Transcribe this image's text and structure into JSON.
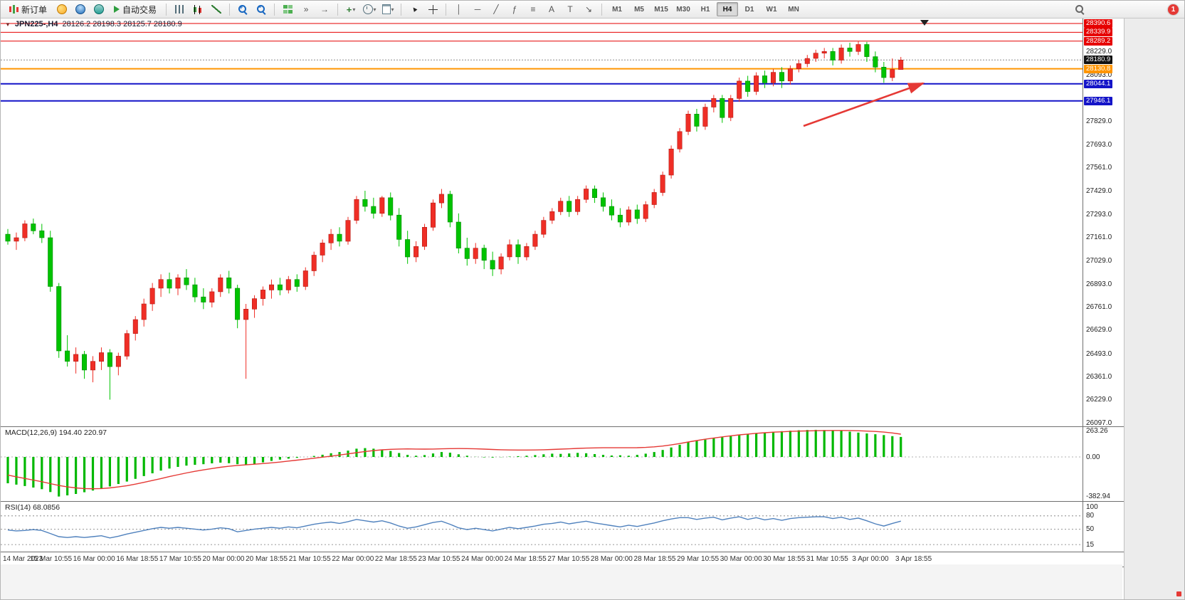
{
  "toolbar": {
    "new_order": "新订单",
    "auto_trading": "自动交易",
    "timeframes": [
      "M1",
      "M5",
      "M15",
      "M30",
      "H1",
      "H4",
      "D1",
      "W1",
      "MN"
    ],
    "active_timeframe": "H4",
    "notification_count": "1",
    "drawing_tools": [
      {
        "name": "vertical-line-tool",
        "glyph": "│"
      },
      {
        "name": "horizontal-line-tool",
        "glyph": "─"
      },
      {
        "name": "trendline-tool",
        "glyph": "╱"
      },
      {
        "name": "fibonacci-tool",
        "glyph": "ƒ"
      },
      {
        "name": "cycle-lines-tool",
        "glyph": "≡"
      },
      {
        "name": "text-tool",
        "glyph": "A"
      },
      {
        "name": "label-tool",
        "glyph": "T"
      },
      {
        "name": "arrows-tool",
        "glyph": "↘"
      }
    ],
    "icons": {
      "dropdown": "▾",
      "play": "▶",
      "tile_windows": "⊞",
      "auto_scroll": "»",
      "chart_shift": "→",
      "cursor": "▲",
      "indicators_plus": "+"
    }
  },
  "chart_data": {
    "type": "candlestick",
    "title_text": "JPN225-,H4",
    "ohlc_text": "28126.2 28198.3 28125.7 28180.9",
    "ohlc": {
      "open": 28126.2,
      "high": 28198.3,
      "low": 28125.7,
      "close": 28180.9
    },
    "up_color": "#ef2e26",
    "down_color": "#00c300",
    "price_axis": [
      28229.0,
      28093.0,
      27829.0,
      27693.0,
      27561.0,
      27429.0,
      27293.0,
      27161.0,
      27029.0,
      26893.0,
      26761.0,
      26629.0,
      26493.0,
      26361.0,
      26229.0,
      26097.0
    ],
    "levels": [
      {
        "value": 28390.6,
        "label": "28390.6",
        "color": "#e60000",
        "width": 1,
        "type": "resistance"
      },
      {
        "value": 28339.9,
        "label": "28339.9",
        "color": "#e60000",
        "width": 1,
        "type": "resistance"
      },
      {
        "value": 28289.2,
        "label": "28289.2",
        "color": "#e60000",
        "width": 1,
        "type": "resistance"
      },
      {
        "value": 28130.8,
        "label": "28130.8",
        "color": "#ff9500",
        "width": 2,
        "type": "support"
      },
      {
        "value": 28044.1,
        "label": "28044.1",
        "color": "#1414c8",
        "width": 2,
        "type": "support"
      },
      {
        "value": 27946.1,
        "label": "27946.1",
        "color": "#1414c8",
        "width": 2,
        "type": "support"
      }
    ],
    "bid": {
      "value": 28180.9,
      "label": "28180.9",
      "tag_color": "#111111"
    },
    "candles": [
      [
        27180,
        27210,
        27120,
        27140
      ],
      [
        27140,
        27190,
        27090,
        27160
      ],
      [
        27160,
        27260,
        27140,
        27240
      ],
      [
        27240,
        27270,
        27180,
        27200
      ],
      [
        27200,
        27240,
        27130,
        27160
      ],
      [
        27160,
        27200,
        26850,
        26880
      ],
      [
        26880,
        26900,
        26470,
        26510
      ],
      [
        26510,
        26600,
        26420,
        26450
      ],
      [
        26450,
        26530,
        26380,
        26490
      ],
      [
        26490,
        26510,
        26350,
        26400
      ],
      [
        26400,
        26480,
        26330,
        26450
      ],
      [
        26450,
        26530,
        26400,
        26500
      ],
      [
        26500,
        26520,
        26230,
        26420
      ],
      [
        26420,
        26500,
        26370,
        26480
      ],
      [
        26480,
        26630,
        26460,
        26610
      ],
      [
        26610,
        26710,
        26570,
        26690
      ],
      [
        26690,
        26810,
        26650,
        26780
      ],
      [
        26780,
        26900,
        26740,
        26870
      ],
      [
        26870,
        26950,
        26820,
        26920
      ],
      [
        26920,
        26960,
        26840,
        26870
      ],
      [
        26870,
        26950,
        26830,
        26930
      ],
      [
        26930,
        26980,
        26860,
        26890
      ],
      [
        26890,
        26930,
        26790,
        26820
      ],
      [
        26820,
        26870,
        26750,
        26790
      ],
      [
        26790,
        26870,
        26760,
        26850
      ],
      [
        26850,
        26950,
        26820,
        26930
      ],
      [
        26930,
        26970,
        26840,
        26870
      ],
      [
        26870,
        26890,
        26640,
        26690
      ],
      [
        26690,
        26780,
        26350,
        26750
      ],
      [
        26750,
        26830,
        26700,
        26810
      ],
      [
        26810,
        26880,
        26770,
        26860
      ],
      [
        26860,
        26920,
        26810,
        26890
      ],
      [
        26890,
        26930,
        26830,
        26860
      ],
      [
        26860,
        26940,
        26840,
        26920
      ],
      [
        26920,
        26950,
        26850,
        26880
      ],
      [
        26880,
        26990,
        26860,
        26970
      ],
      [
        26970,
        27080,
        26940,
        27060
      ],
      [
        27060,
        27150,
        27020,
        27130
      ],
      [
        27130,
        27210,
        27090,
        27180
      ],
      [
        27180,
        27220,
        27110,
        27140
      ],
      [
        27140,
        27280,
        27120,
        27260
      ],
      [
        27260,
        27400,
        27240,
        27380
      ],
      [
        27380,
        27430,
        27310,
        27340
      ],
      [
        27340,
        27390,
        27270,
        27300
      ],
      [
        27300,
        27400,
        27280,
        27390
      ],
      [
        27390,
        27420,
        27260,
        27290
      ],
      [
        27290,
        27330,
        27110,
        27150
      ],
      [
        27150,
        27200,
        27010,
        27050
      ],
      [
        27050,
        27140,
        27020,
        27110
      ],
      [
        27110,
        27240,
        27090,
        27220
      ],
      [
        27220,
        27380,
        27200,
        27360
      ],
      [
        27360,
        27440,
        27330,
        27410
      ],
      [
        27410,
        27430,
        27220,
        27250
      ],
      [
        27250,
        27300,
        27070,
        27100
      ],
      [
        27100,
        27160,
        27000,
        27040
      ],
      [
        27040,
        27130,
        27010,
        27100
      ],
      [
        27100,
        27120,
        26980,
        27030
      ],
      [
        27030,
        27080,
        26940,
        26980
      ],
      [
        26980,
        27070,
        26950,
        27050
      ],
      [
        27050,
        27150,
        27030,
        27120
      ],
      [
        27120,
        27150,
        27010,
        27050
      ],
      [
        27050,
        27130,
        27030,
        27110
      ],
      [
        27110,
        27200,
        27090,
        27180
      ],
      [
        27180,
        27280,
        27160,
        27260
      ],
      [
        27260,
        27330,
        27240,
        27310
      ],
      [
        27310,
        27390,
        27290,
        27370
      ],
      [
        27370,
        27400,
        27280,
        27310
      ],
      [
        27310,
        27400,
        27290,
        27380
      ],
      [
        27380,
        27460,
        27360,
        27440
      ],
      [
        27440,
        27460,
        27360,
        27390
      ],
      [
        27390,
        27420,
        27310,
        27340
      ],
      [
        27340,
        27380,
        27260,
        27290
      ],
      [
        27290,
        27330,
        27220,
        27250
      ],
      [
        27250,
        27340,
        27230,
        27320
      ],
      [
        27320,
        27350,
        27240,
        27270
      ],
      [
        27270,
        27370,
        27250,
        27350
      ],
      [
        27350,
        27440,
        27330,
        27420
      ],
      [
        27420,
        27540,
        27400,
        27520
      ],
      [
        27520,
        27690,
        27500,
        27670
      ],
      [
        27670,
        27790,
        27650,
        27770
      ],
      [
        27770,
        27890,
        27750,
        27870
      ],
      [
        27870,
        27900,
        27770,
        27800
      ],
      [
        27800,
        27930,
        27780,
        27910
      ],
      [
        27910,
        27980,
        27880,
        27960
      ],
      [
        27960,
        27980,
        27820,
        27850
      ],
      [
        27850,
        27980,
        27830,
        27960
      ],
      [
        27960,
        28080,
        27940,
        28060
      ],
      [
        28060,
        28090,
        27970,
        28000
      ],
      [
        28000,
        28110,
        27980,
        28090
      ],
      [
        28090,
        28120,
        28020,
        28050
      ],
      [
        28050,
        28130,
        28030,
        28110
      ],
      [
        28110,
        28140,
        28020,
        28060
      ],
      [
        28060,
        28150,
        28040,
        28130
      ],
      [
        28130,
        28180,
        28110,
        28160
      ],
      [
        28160,
        28210,
        28140,
        28190
      ],
      [
        28190,
        28240,
        28170,
        28220
      ],
      [
        28220,
        28250,
        28190,
        28230
      ],
      [
        28230,
        28250,
        28150,
        28180
      ],
      [
        28180,
        28270,
        28160,
        28250
      ],
      [
        28250,
        28280,
        28200,
        28230
      ],
      [
        28230,
        28290,
        28210,
        28270
      ],
      [
        28270,
        28285,
        28170,
        28200
      ],
      [
        28200,
        28230,
        28110,
        28140
      ],
      [
        28140,
        28170,
        28050,
        28080
      ],
      [
        28080,
        28190,
        28060,
        28126
      ],
      [
        28126.2,
        28198.3,
        28125.7,
        28180.9
      ]
    ],
    "time_axis": [
      "14 Mar 2023",
      "15 Mar 10:55",
      "16 Mar 00:00",
      "16 Mar 18:55",
      "17 Mar 10:55",
      "20 Mar 00:00",
      "20 Mar 18:55",
      "21 Mar 10:55",
      "22 Mar 00:00",
      "22 Mar 18:55",
      "23 Mar 10:55",
      "24 Mar 00:00",
      "24 Mar 18:55",
      "27 Mar 10:55",
      "28 Mar 00:00",
      "28 Mar 18:55",
      "29 Mar 10:55",
      "30 Mar 00:00",
      "30 Mar 18:55",
      "31 Mar 10:55",
      "3 Apr 00:00",
      "3 Apr 18:55"
    ],
    "macd": {
      "header": "MACD(12,26,9) 194.40 220.97",
      "color_histogram": "#00b800",
      "color_signal": "#e53935",
      "axis": [
        {
          "v": 263.26,
          "label": "263.26"
        },
        {
          "v": 0,
          "label": "0.00"
        },
        {
          "v": -382.94,
          "label": "-382.94"
        }
      ],
      "histogram": [
        -255,
        -268,
        -282,
        -296,
        -312,
        -340,
        -383,
        -372,
        -358,
        -342,
        -325,
        -305,
        -285,
        -262,
        -238,
        -212,
        -185,
        -158,
        -132,
        -112,
        -96,
        -84,
        -76,
        -70,
        -62,
        -55,
        -60,
        -70,
        -76,
        -66,
        -52,
        -38,
        -26,
        -16,
        -8,
        0,
        10,
        22,
        36,
        48,
        62,
        80,
        86,
        80,
        72,
        58,
        38,
        20,
        12,
        18,
        34,
        48,
        42,
        26,
        12,
        2,
        -4,
        -6,
        -2,
        4,
        8,
        12,
        18,
        26,
        32,
        30,
        34,
        40,
        36,
        28,
        20,
        14,
        16,
        12,
        20,
        32,
        48,
        68,
        92,
        118,
        142,
        155,
        168,
        180,
        190,
        200,
        210,
        220,
        230,
        238,
        245,
        250,
        255,
        259,
        262,
        263,
        261,
        258,
        252,
        245,
        236,
        228,
        220,
        212,
        202,
        194
      ],
      "signal": [
        -175,
        -192,
        -208,
        -224,
        -240,
        -258,
        -276,
        -290,
        -300,
        -306,
        -308,
        -306,
        -300,
        -290,
        -278,
        -263,
        -246,
        -228,
        -209,
        -190,
        -172,
        -155,
        -139,
        -125,
        -112,
        -100,
        -90,
        -82,
        -76,
        -70,
        -64,
        -57,
        -49,
        -40,
        -31,
        -22,
        -12,
        -2,
        8,
        19,
        30,
        42,
        53,
        62,
        69,
        74,
        77,
        78,
        77,
        76,
        77,
        79,
        81,
        82,
        81,
        79,
        76,
        73,
        70,
        68,
        67,
        67,
        68,
        70,
        73,
        76,
        79,
        83,
        86,
        88,
        89,
        89,
        89,
        89,
        90,
        93,
        98,
        106,
        117,
        130,
        145,
        159,
        172,
        184,
        195,
        205,
        214,
        222,
        229,
        235,
        240,
        244,
        248,
        251,
        253,
        255,
        256,
        257,
        257,
        256,
        254,
        251,
        247,
        241,
        233,
        221
      ]
    },
    "rsi": {
      "header": "RSI(14) 68.0856",
      "color_line": "#4f81bd",
      "levels": [
        80,
        50,
        15
      ],
      "axis": [
        {
          "v": 100,
          "label": "100"
        },
        {
          "v": 80,
          "label": "80"
        },
        {
          "v": 50,
          "label": "50"
        },
        {
          "v": 15,
          "label": "15"
        }
      ],
      "values": [
        48,
        46,
        47,
        49,
        47,
        40,
        33,
        31,
        33,
        31,
        33,
        35,
        30,
        34,
        39,
        43,
        47,
        51,
        54,
        52,
        54,
        52,
        50,
        48,
        50,
        53,
        51,
        44,
        47,
        50,
        52,
        54,
        52,
        55,
        53,
        57,
        61,
        64,
        66,
        63,
        67,
        72,
        69,
        66,
        69,
        64,
        57,
        52,
        55,
        60,
        65,
        68,
        61,
        53,
        49,
        52,
        49,
        46,
        50,
        54,
        51,
        54,
        57,
        61,
        63,
        66,
        62,
        65,
        68,
        64,
        61,
        58,
        55,
        59,
        56,
        60,
        64,
        69,
        73,
        76,
        76,
        72,
        75,
        77,
        71,
        75,
        78,
        72,
        76,
        71,
        74,
        70,
        74,
        76,
        77,
        78,
        78,
        74,
        77,
        72,
        75,
        69,
        62,
        57,
        63,
        68.09
      ],
      "current": 68.0856
    },
    "annotation_arrow": {
      "color": "#e53935"
    }
  }
}
